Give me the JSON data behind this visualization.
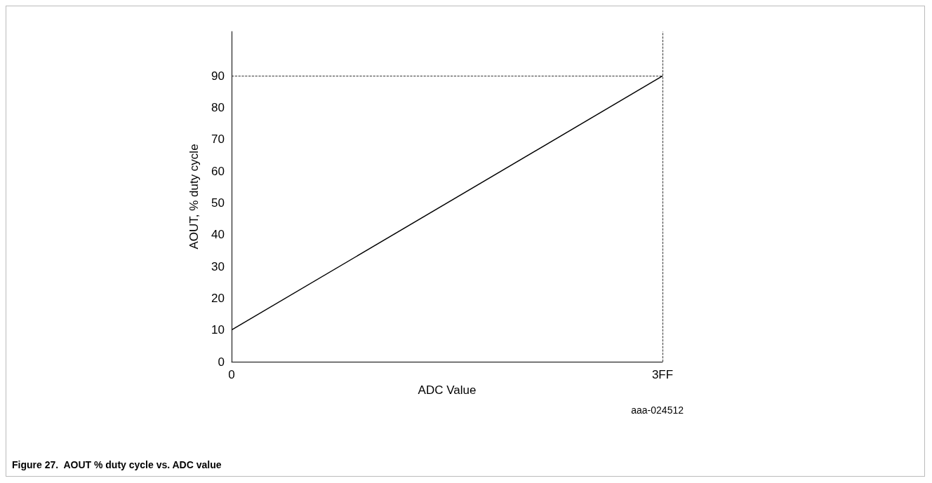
{
  "chart_data": {
    "type": "line",
    "title": "Figure 27.  AOUT % duty cycle vs. ADC value",
    "xlabel": "ADC Value",
    "ylabel": "AOUT, % duty cycle",
    "annotations": [
      "aaa-024512"
    ],
    "categories": [
      "0",
      "3FF"
    ],
    "series": [
      {
        "color": "#000000",
        "values": [
          10,
          90
        ]
      }
    ],
    "ylim": [
      0,
      104
    ],
    "yticks": [
      0,
      10,
      20,
      30,
      40,
      50,
      60,
      70,
      80,
      90
    ],
    "ref_lines": [
      {
        "axis": "y",
        "value": 90,
        "line_style": "dashed",
        "color": "#000000"
      },
      {
        "axis": "x",
        "value": "3FF",
        "line_style": "dashed",
        "color": "#000000"
      }
    ],
    "grid": false,
    "marker": "none",
    "line_style": "solid"
  }
}
